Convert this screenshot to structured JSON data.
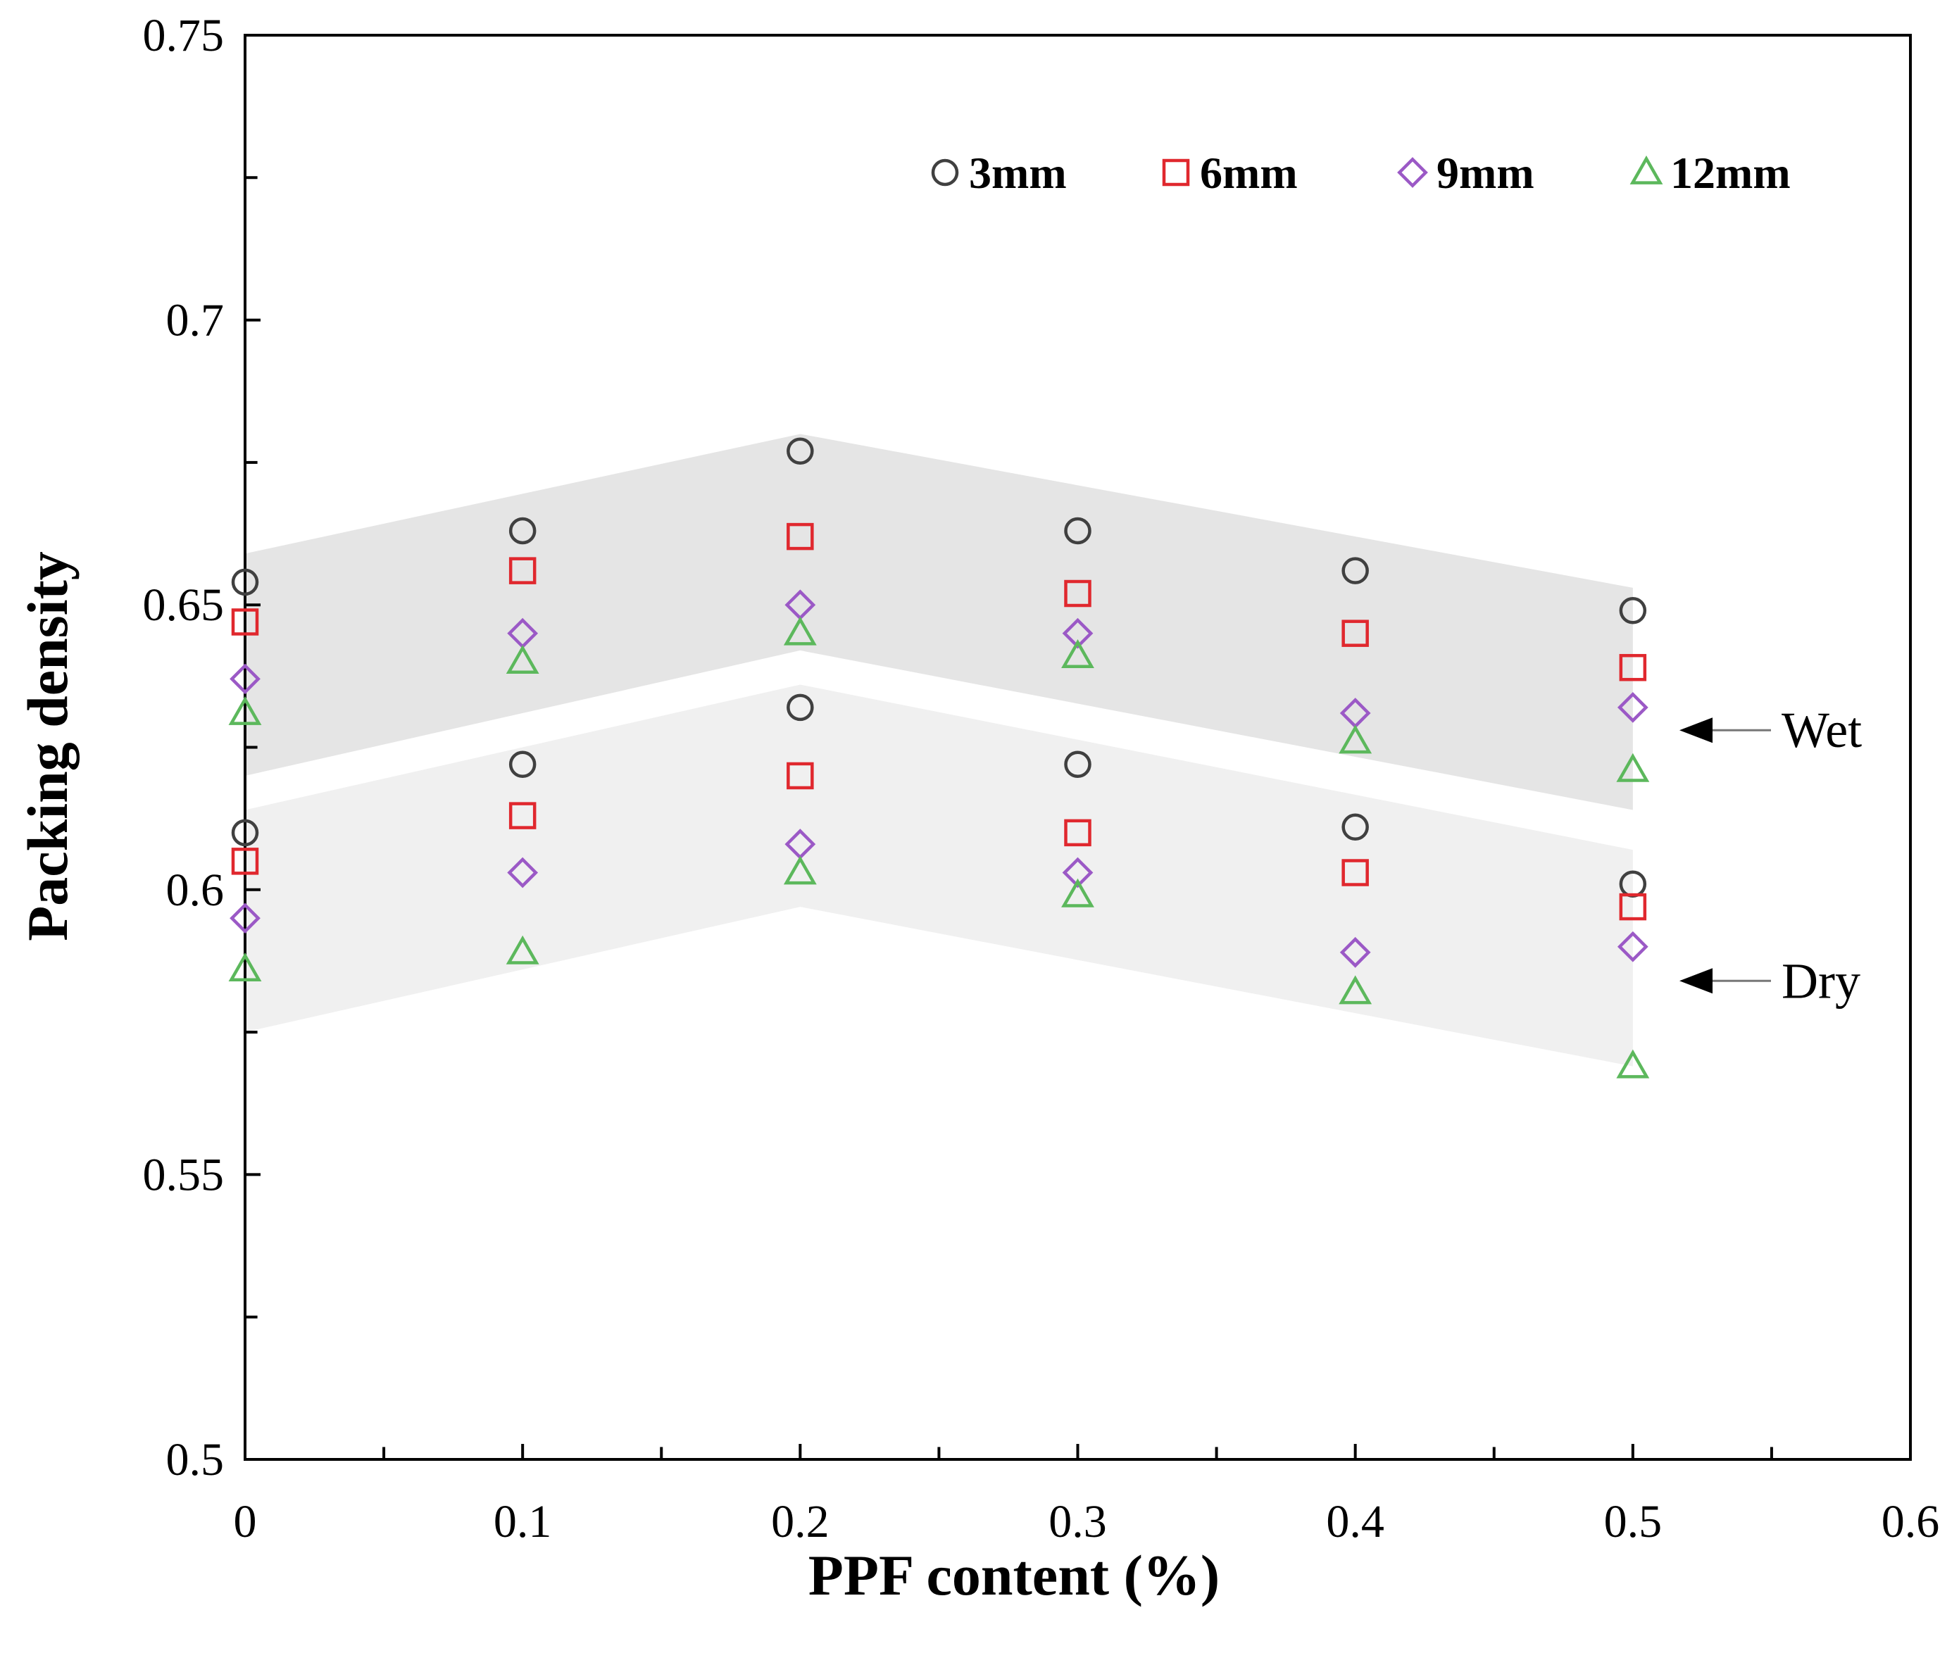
{
  "chart_data": {
    "type": "scatter",
    "title": "",
    "xlabel": "PPF content (%)",
    "ylabel": "Packing density",
    "xlim": [
      0,
      0.6
    ],
    "ylim": [
      0.5,
      0.75
    ],
    "x_ticks": [
      0,
      0.1,
      0.2,
      0.3,
      0.4,
      0.5,
      0.6
    ],
    "x_tick_labels": [
      "0",
      "0.1",
      "0.2",
      "0.3",
      "0.4",
      "0.5",
      "0.6"
    ],
    "y_ticks": [
      0.5,
      0.55,
      0.6,
      0.65,
      0.7,
      0.75
    ],
    "y_tick_labels": [
      "0.5",
      "0.55",
      "0.6",
      "0.65",
      "0.7",
      "0.75"
    ],
    "grid": false,
    "legend_position": "top-right",
    "x": [
      0,
      0.1,
      0.2,
      0.3,
      0.4,
      0.5
    ],
    "series": [
      {
        "name": "3mm",
        "marker": "circle",
        "color": "#404040",
        "wet": [
          0.654,
          0.663,
          0.677,
          0.663,
          0.656,
          0.649
        ],
        "dry": [
          0.61,
          0.622,
          0.632,
          0.622,
          0.611,
          0.601
        ]
      },
      {
        "name": "6mm",
        "marker": "square",
        "color": "#e0282e",
        "wet": [
          0.647,
          0.656,
          0.662,
          0.652,
          0.645,
          0.639
        ],
        "dry": [
          0.605,
          0.613,
          0.62,
          0.61,
          0.603,
          0.597
        ]
      },
      {
        "name": "9mm",
        "marker": "diamond",
        "color": "#9b59c6",
        "wet": [
          0.637,
          0.645,
          0.65,
          0.645,
          0.631,
          0.632
        ],
        "dry": [
          0.595,
          0.603,
          0.608,
          0.603,
          0.589,
          0.59
        ]
      },
      {
        "name": "12mm",
        "marker": "triangle",
        "color": "#5cb85c",
        "wet": [
          0.631,
          0.64,
          0.645,
          0.641,
          0.626,
          0.621
        ],
        "dry": [
          0.586,
          0.589,
          0.603,
          0.599,
          0.582,
          0.569
        ]
      }
    ],
    "bands": [
      {
        "name": "Wet",
        "x": [
          0,
          0.2,
          0.5
        ],
        "upper": [
          0.659,
          0.68,
          0.653
        ],
        "lower": [
          0.62,
          0.642,
          0.614
        ],
        "color": "#e5e5e5"
      },
      {
        "name": "Dry",
        "x": [
          0,
          0.2,
          0.5
        ],
        "upper": [
          0.614,
          0.636,
          0.607
        ],
        "lower": [
          0.575,
          0.597,
          0.569
        ],
        "color": "#f0f0f0"
      }
    ],
    "annotations": [
      {
        "text": "Wet",
        "y": 0.628
      },
      {
        "text": "Dry",
        "y": 0.584
      }
    ]
  }
}
